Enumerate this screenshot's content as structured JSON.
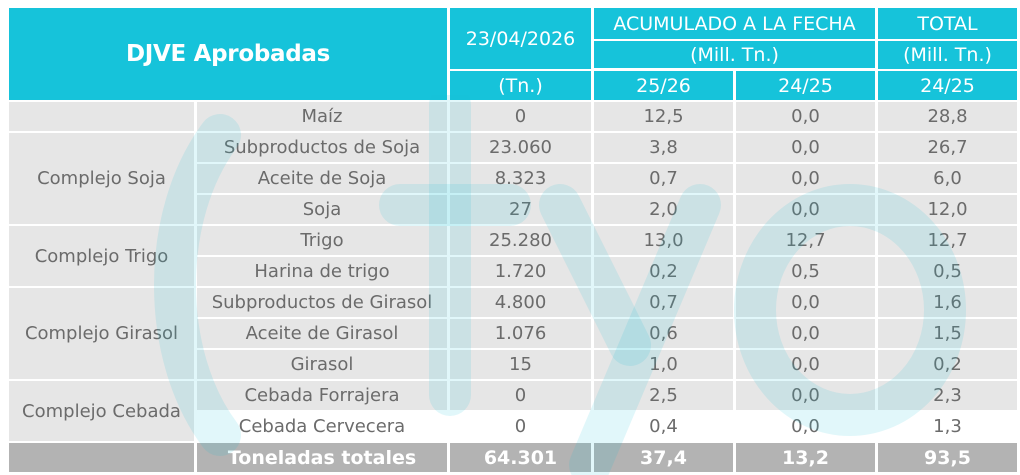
{
  "header": {
    "title": "DJVE Aprobadas",
    "date": "23/04/2026",
    "date_unit": "(Tn.)",
    "acum_title": "ACUMULADO A LA FECHA",
    "acum_unit": "(Mill. Tn.)",
    "total_title": "TOTAL",
    "total_unit": "(Mill. Tn.)",
    "col_2526": "25/26",
    "col_2425": "24/25",
    "col_total_2425": "24/25"
  },
  "rows": [
    {
      "group": "",
      "product": "Maíz",
      "tn": "0",
      "acum_2526": "12,5",
      "acum_2425": "0,0",
      "total_2425": "28,8"
    },
    {
      "group": "Complejo Soja",
      "product": "Subproductos de Soja",
      "tn": "23.060",
      "acum_2526": "3,8",
      "acum_2425": "0,0",
      "total_2425": "26,7"
    },
    {
      "group": "",
      "product": "Aceite de Soja",
      "tn": "8.323",
      "acum_2526": "0,7",
      "acum_2425": "0,0",
      "total_2425": "6,0"
    },
    {
      "group": "",
      "product": "Soja",
      "tn": "27",
      "acum_2526": "2,0",
      "acum_2425": "0,0",
      "total_2425": "12,0"
    },
    {
      "group": "Complejo Trigo",
      "product": "Trigo",
      "tn": "25.280",
      "acum_2526": "13,0",
      "acum_2425": "12,7",
      "total_2425": "12,7"
    },
    {
      "group": "",
      "product": "Harina de trigo",
      "tn": "1.720",
      "acum_2526": "0,2",
      "acum_2425": "0,5",
      "total_2425": "0,5"
    },
    {
      "group": "Complejo Girasol",
      "product": "Subproductos de Girasol",
      "tn": "4.800",
      "acum_2526": "0,7",
      "acum_2425": "0,0",
      "total_2425": "1,6"
    },
    {
      "group": "",
      "product": "Aceite de Girasol",
      "tn": "1.076",
      "acum_2526": "0,6",
      "acum_2425": "0,0",
      "total_2425": "1,5"
    },
    {
      "group": "",
      "product": "Girasol",
      "tn": "15",
      "acum_2526": "1,0",
      "acum_2425": "0,0",
      "total_2425": "0,2"
    },
    {
      "group": "Complejo Cebada",
      "product": "Cebada Forrajera",
      "tn": "0",
      "acum_2526": "2,5",
      "acum_2425": "0,0",
      "total_2425": "2,3"
    },
    {
      "group": "",
      "product": "Cebada Cervecera",
      "tn": "0",
      "acum_2526": "0,4",
      "acum_2425": "0,0",
      "total_2425": "1,3"
    }
  ],
  "footer": {
    "label": "Toneladas totales",
    "tn": "64.301",
    "acum_2526": "37,4",
    "acum_2425": "13,2",
    "total_2425": "93,5"
  },
  "colors": {
    "header_bg": "#16c3da",
    "row_bg": "#e6e6e6",
    "footer_bg": "#b3b3b3",
    "text": "#6b6b6b",
    "watermark": "#16c3da"
  }
}
